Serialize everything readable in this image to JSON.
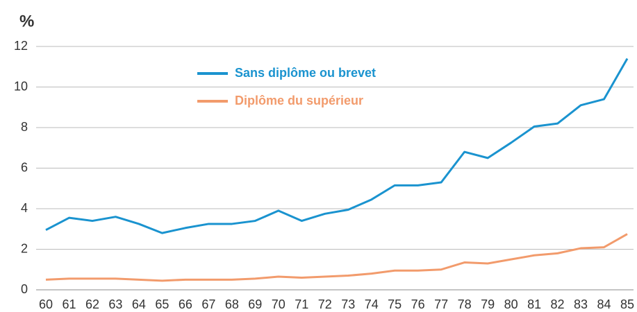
{
  "chart_data": {
    "type": "line",
    "y_label": "%",
    "categories": [
      "60",
      "61",
      "62",
      "63",
      "64",
      "65",
      "66",
      "67",
      "68",
      "69",
      "70",
      "71",
      "72",
      "73",
      "74",
      "75",
      "76",
      "77",
      "78",
      "79",
      "80",
      "81",
      "82",
      "83",
      "84",
      "85"
    ],
    "series": [
      {
        "name": "Sans diplôme ou brevet",
        "color": "#1a93cf",
        "values": [
          2.95,
          3.55,
          3.4,
          3.6,
          3.25,
          2.8,
          3.05,
          3.25,
          3.25,
          3.4,
          3.9,
          3.4,
          3.75,
          3.95,
          4.45,
          5.15,
          5.15,
          5.3,
          6.8,
          6.5,
          7.25,
          8.05,
          8.2,
          9.1,
          9.4,
          11.4
        ]
      },
      {
        "name": "Diplôme du supérieur",
        "color": "#f29b6c",
        "values": [
          0.5,
          0.55,
          0.55,
          0.55,
          0.5,
          0.45,
          0.5,
          0.5,
          0.5,
          0.55,
          0.65,
          0.6,
          0.65,
          0.7,
          0.8,
          0.95,
          0.95,
          1.0,
          1.35,
          1.3,
          1.5,
          1.7,
          1.8,
          2.05,
          2.1,
          2.75
        ]
      }
    ],
    "ylim": [
      0,
      12
    ],
    "yticks": [
      0,
      2,
      4,
      6,
      8,
      10,
      12
    ],
    "grid": true,
    "legend": "top"
  }
}
